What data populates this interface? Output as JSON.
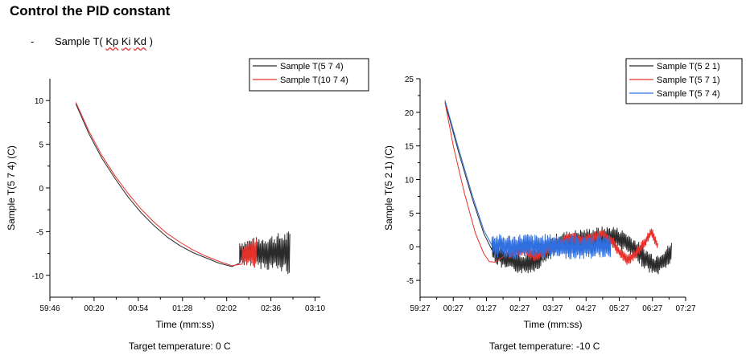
{
  "heading": "Control the PID constant",
  "bullet": {
    "dash": "-",
    "prefix": "Sample T( ",
    "kp": "Kp",
    "ki": "Ki",
    "kd": "Kd",
    "suffix": " )"
  },
  "chart_data": [
    {
      "type": "line",
      "xlabel": "Time (mm:ss)",
      "ylabel": "Sample T(5 7 4) (C)",
      "xlim": [
        0,
        208
      ],
      "ylim": [
        -12.5,
        12.5
      ],
      "xticks": [
        {
          "v": 0,
          "label": "59:46"
        },
        {
          "v": 34,
          "label": "00:20"
        },
        {
          "v": 68,
          "label": "00:54"
        },
        {
          "v": 102,
          "label": "01:28"
        },
        {
          "v": 136,
          "label": "02:02"
        },
        {
          "v": 170,
          "label": "02:36"
        },
        {
          "v": 204,
          "label": "03:10"
        }
      ],
      "yticks": [
        -10,
        -5,
        0,
        5,
        10
      ],
      "legend": "top-right",
      "caption": "Target temperature: 0 C",
      "series": [
        {
          "name": "Sample T(5 7 4)",
          "color": "#2b2b2b",
          "x": [
            20,
            30,
            40,
            50,
            60,
            70,
            80,
            90,
            100,
            110,
            120,
            130,
            140,
            146
          ],
          "y": [
            9.6,
            6.2,
            3.4,
            1.1,
            -1.0,
            -2.8,
            -4.3,
            -5.6,
            -6.6,
            -7.4,
            -8.0,
            -8.6,
            -9.0,
            -8.6
          ],
          "osc": {
            "x0": 146,
            "x1": 185,
            "center": -7.4,
            "amp0": 1.4,
            "amp1": 2.5
          }
        },
        {
          "name": "Sample T(10 7 4)",
          "color": "#e8302a",
          "x": [
            20,
            30,
            40,
            50,
            60,
            70,
            80,
            90,
            100,
            110,
            120,
            130,
            140,
            148
          ],
          "y": [
            9.8,
            6.5,
            3.7,
            1.4,
            -0.6,
            -2.4,
            -3.9,
            -5.2,
            -6.2,
            -7.1,
            -7.8,
            -8.4,
            -8.9,
            -8.7
          ],
          "osc": {
            "x0": 148,
            "x1": 159,
            "center": -7.6,
            "amp0": 1.2,
            "amp1": 2.0
          }
        }
      ]
    },
    {
      "type": "line",
      "xlabel": "Time (mm:ss)",
      "ylabel": "Sample T(5 2 1) (C)",
      "xlim": [
        0,
        480
      ],
      "ylim": [
        -7.5,
        25
      ],
      "xticks": [
        {
          "v": 0,
          "label": "59:27"
        },
        {
          "v": 60,
          "label": "00:27"
        },
        {
          "v": 120,
          "label": "01:27"
        },
        {
          "v": 180,
          "label": "02:27"
        },
        {
          "v": 240,
          "label": "03:27"
        },
        {
          "v": 300,
          "label": "04:27"
        },
        {
          "v": 360,
          "label": "05:27"
        },
        {
          "v": 420,
          "label": "06:27"
        },
        {
          "v": 480,
          "label": "07:27"
        }
      ],
      "yticks": [
        -5,
        0,
        5,
        10,
        15,
        20,
        25
      ],
      "legend": "top-right",
      "caption": "Target temperature: -10 C",
      "series": [
        {
          "name": "Sample T(5 2 1)",
          "color": "#2b2b2b",
          "x": [
            45,
            70,
            95,
            115,
            130,
            150,
            170,
            190,
            210,
            230,
            250,
            270,
            290,
            310,
            330,
            350,
            370,
            390,
            410,
            425,
            440,
            455
          ],
          "y": [
            21.5,
            14.0,
            7.0,
            2.0,
            -0.5,
            -1.8,
            -2.2,
            -2.5,
            -2.0,
            -0.5,
            0.5,
            0.8,
            1.0,
            1.2,
            1.4,
            1.5,
            0.8,
            -0.5,
            -2.0,
            -2.8,
            -2.0,
            -0.8
          ],
          "osc": {
            "x0": 130,
            "x1": 455,
            "center": 0,
            "amp0": 1.6,
            "amp1": 1.6
          }
        },
        {
          "name": "Sample T(5 7 1)",
          "color": "#e8302a",
          "x": [
            45,
            60,
            80,
            100,
            115,
            125,
            135,
            150,
            170,
            190,
            210,
            230,
            250,
            270,
            290,
            310,
            330,
            350,
            360,
            375,
            390,
            405,
            418,
            425,
            430
          ],
          "y": [
            21.5,
            15.0,
            8.0,
            2.0,
            -1.0,
            -2.2,
            -2.3,
            -1.5,
            -0.8,
            -0.5,
            -1.5,
            -0.5,
            0.2,
            1.5,
            1.0,
            1.2,
            2.0,
            0.5,
            -0.8,
            -2.0,
            -1.0,
            0.5,
            2.2,
            1.0,
            0.0
          ],
          "osc": {
            "x0": 160,
            "x1": 430,
            "center": 0,
            "amp0": 0.8,
            "amp1": 0.8
          }
        },
        {
          "name": "Sample T(5 7 4)",
          "color": "#2f6fe0",
          "x": [
            45,
            70,
            95,
            115,
            130,
            150,
            170,
            190,
            210,
            230,
            250,
            270,
            290,
            310,
            330,
            345
          ],
          "y": [
            21.8,
            14.5,
            7.5,
            2.5,
            0.2,
            0.0,
            0.0,
            0.2,
            0.0,
            0.1,
            0.0,
            0.0,
            -0.1,
            0.0,
            0.2,
            0.0
          ],
          "osc": {
            "x0": 130,
            "x1": 345,
            "center": 0,
            "amp0": 1.8,
            "amp1": 1.8
          }
        }
      ]
    }
  ]
}
